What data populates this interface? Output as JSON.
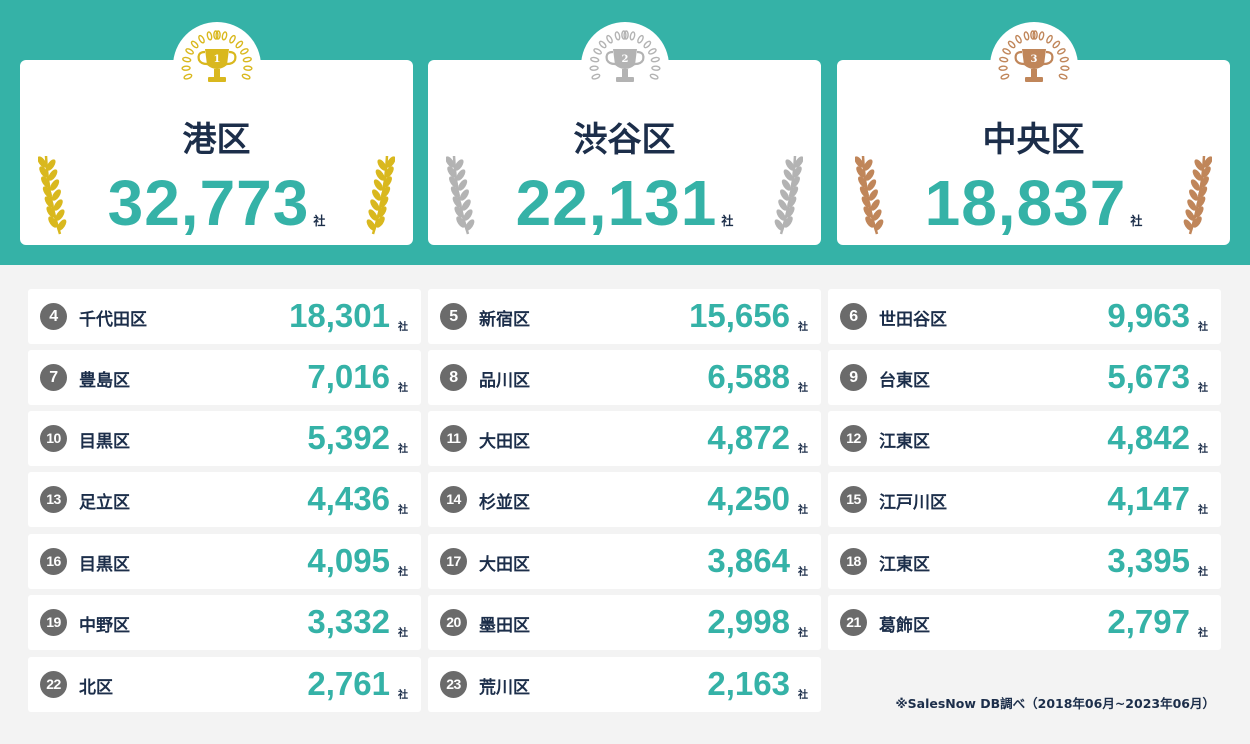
{
  "podium": [
    {
      "rank": "1",
      "name": "港区",
      "value": "32,773",
      "unit": "社",
      "medal": "gold-trophy-icon",
      "color": "#d9b81e"
    },
    {
      "rank": "2",
      "name": "渋谷区",
      "value": "22,131",
      "unit": "社",
      "medal": "silver-trophy-icon",
      "color": "#b3b3b3"
    },
    {
      "rank": "3",
      "name": "中央区",
      "value": "18,837",
      "unit": "社",
      "medal": "bronze-trophy-icon",
      "color": "#c0865a"
    }
  ],
  "rankings": [
    {
      "rank": "4",
      "name": "千代田区",
      "value": "18,301",
      "unit": "社"
    },
    {
      "rank": "5",
      "name": "新宿区",
      "value": "15,656",
      "unit": "社"
    },
    {
      "rank": "6",
      "name": "世田谷区",
      "value": "9,963",
      "unit": "社"
    },
    {
      "rank": "7",
      "name": "豊島区",
      "value": "7,016",
      "unit": "社"
    },
    {
      "rank": "8",
      "name": "品川区",
      "value": "6,588",
      "unit": "社"
    },
    {
      "rank": "9",
      "name": "台東区",
      "value": "5,673",
      "unit": "社"
    },
    {
      "rank": "10",
      "name": "目黒区",
      "value": "5,392",
      "unit": "社"
    },
    {
      "rank": "11",
      "name": "大田区",
      "value": "4,872",
      "unit": "社"
    },
    {
      "rank": "12",
      "name": "江東区",
      "value": "4,842",
      "unit": "社"
    },
    {
      "rank": "13",
      "name": "足立区",
      "value": "4,436",
      "unit": "社"
    },
    {
      "rank": "14",
      "name": "杉並区",
      "value": "4,250",
      "unit": "社"
    },
    {
      "rank": "15",
      "name": "江戸川区",
      "value": "4,147",
      "unit": "社"
    },
    {
      "rank": "16",
      "name": "目黒区",
      "value": "4,095",
      "unit": "社"
    },
    {
      "rank": "17",
      "name": "大田区",
      "value": "3,864",
      "unit": "社"
    },
    {
      "rank": "18",
      "name": "江東区",
      "value": "3,395",
      "unit": "社"
    },
    {
      "rank": "19",
      "name": "中野区",
      "value": "3,332",
      "unit": "社"
    },
    {
      "rank": "20",
      "name": "墨田区",
      "value": "2,998",
      "unit": "社"
    },
    {
      "rank": "21",
      "name": "葛飾区",
      "value": "2,797",
      "unit": "社"
    },
    {
      "rank": "22",
      "name": "北区",
      "value": "2,761",
      "unit": "社"
    },
    {
      "rank": "23",
      "name": "荒川区",
      "value": "2,163",
      "unit": "社"
    }
  ],
  "footnote": "※SalesNow DB調べ（2018年06月~2023年06月）",
  "colors": {
    "accent": "#35b2a7",
    "text": "#1c2e4a",
    "badge": "#6b6b6b"
  }
}
